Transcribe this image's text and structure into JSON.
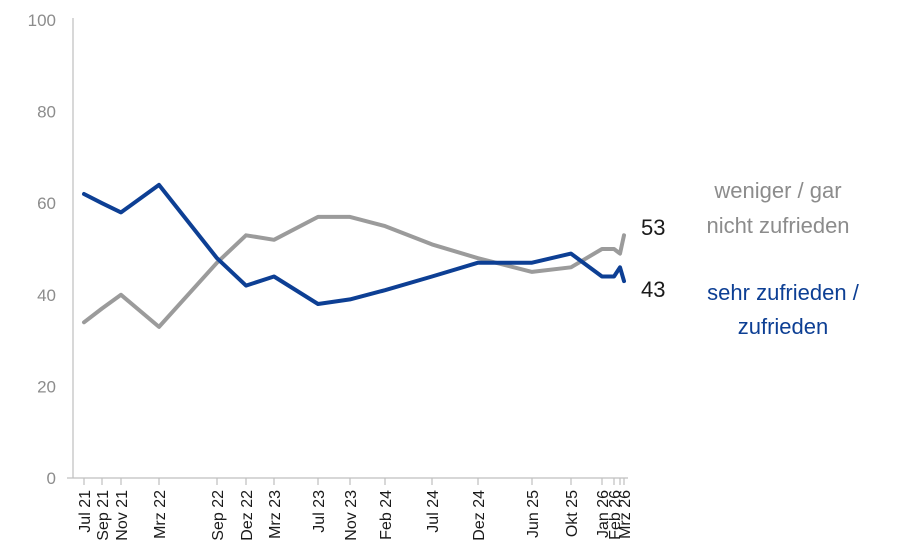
{
  "chart_data": {
    "type": "line",
    "x": [
      "Jul 21",
      "Sep 21",
      "Nov 21",
      "Mrz 22",
      "Sep 22",
      "Dez 22",
      "Mrz 23",
      "Jul 23",
      "Nov 23",
      "Feb 24",
      "Jul 24",
      "Dez 24",
      "Jun 25",
      "Okt 25",
      "Jan 26",
      "Feb 26",
      "",
      "Mrz 26"
    ],
    "series": [
      {
        "name": "weniger / gar nicht zufrieden",
        "name_lines": [
          "weniger / gar",
          "nicht zufrieden"
        ],
        "color": "#9b9b9b",
        "end_label": "53",
        "values": [
          34,
          37,
          40,
          33,
          47,
          53,
          52,
          57,
          57,
          55,
          51,
          48,
          45,
          46,
          50,
          50,
          49,
          53
        ]
      },
      {
        "name": "sehr zufrieden / zufrieden",
        "name_lines": [
          "sehr zufrieden /",
          "zufrieden"
        ],
        "color": "#0d3f94",
        "end_label": "43",
        "values": [
          62,
          60,
          58,
          64,
          48,
          42,
          44,
          38,
          39,
          41,
          44,
          47,
          47,
          49,
          44,
          44,
          46,
          43
        ]
      }
    ],
    "yticks": [
      0,
      20,
      40,
      60,
      80,
      100
    ],
    "ylim": [
      0,
      100
    ],
    "grid": false,
    "legend": "right",
    "axis_color": "#bfbfbf"
  }
}
